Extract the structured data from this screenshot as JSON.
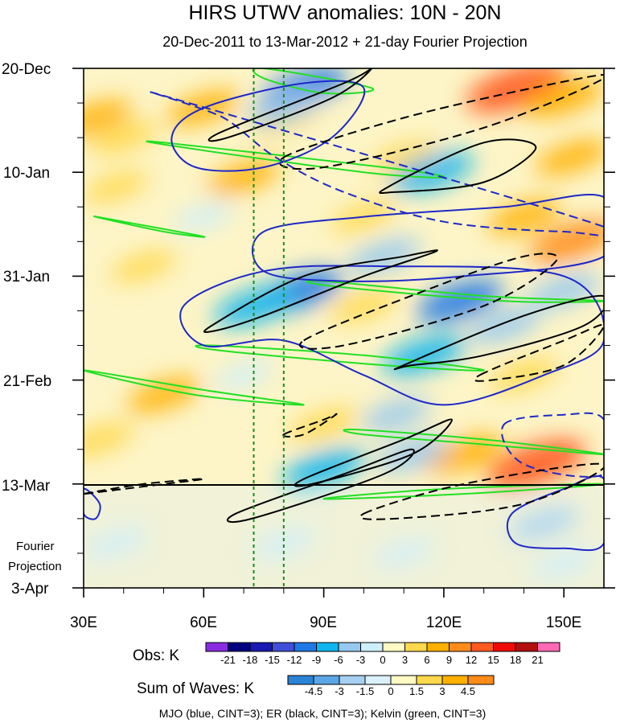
{
  "chart_data": {
    "type": "heatmap",
    "title": "HIRS UTWV anomalies: 10N - 20N",
    "subtitle": "20-Dec-2011 to 13-Mar-2012 + 21-day Fourier Projection",
    "x_axis": {
      "range": [
        30,
        160
      ],
      "units": "degrees east",
      "ticks": [
        30,
        60,
        90,
        120,
        150
      ],
      "tick_labels": [
        "30E",
        "60E",
        "90E",
        "120E",
        "150E"
      ]
    },
    "y_axis": {
      "range_days": [
        0,
        105
      ],
      "direction": "time increases downward",
      "ticks_days": [
        0,
        21,
        42,
        63,
        84,
        105
      ],
      "tick_labels": [
        "20-Dec",
        "10-Jan",
        "31-Jan",
        "21-Feb",
        "13-Mar",
        "3-Apr"
      ],
      "projection_label_lines": [
        "Fourier",
        "Projection"
      ]
    },
    "observation_end_day": 84,
    "reference_longitudes": [
      72.5,
      80
    ],
    "obs_colorbar": {
      "label": "Obs: K",
      "levels": [
        "-21",
        "-18",
        "-15",
        "-12",
        "-9",
        "-6",
        "-3",
        "0",
        "3",
        "6",
        "9",
        "12",
        "15",
        "18",
        "21"
      ],
      "colors": [
        "#8a2be2",
        "#000080",
        "#1919b3",
        "#3f4fd9",
        "#1f78e6",
        "#11b5ee",
        "#96c8f0",
        "#cdeefa",
        "#fff9c4",
        "#ffd84d",
        "#ffb000",
        "#ff8c1a",
        "#ff5a1f",
        "#f00a0a",
        "#b30f0f",
        "#ff69b4"
      ]
    },
    "waves_colorbar": {
      "label": "Sum of Waves: K",
      "levels": [
        "-4.5",
        "-3",
        "-1.5",
        "0",
        "1.5",
        "3",
        "4.5"
      ],
      "colors": [
        "#2b83d6",
        "#5aa6e6",
        "#a6cff2",
        "#daf0fa",
        "#fff9c4",
        "#ffd84d",
        "#ffb000",
        "#ff8c1a"
      ]
    },
    "caption": "MJO (blue, CINT=3); ER (black, CINT=3); Kelvin (green, CINT=3)",
    "anomaly_field": [
      {
        "lon": 33,
        "day": 10,
        "v": 6
      },
      {
        "lon": 40,
        "day": 14,
        "v": 5
      },
      {
        "lon": 60,
        "day": 8,
        "v": 6
      },
      {
        "lon": 80,
        "day": 10,
        "v": 5
      },
      {
        "lon": 70,
        "day": 22,
        "v": 6
      },
      {
        "lon": 38,
        "day": 24,
        "v": 4
      },
      {
        "lon": 110,
        "day": 18,
        "v": 4
      },
      {
        "lon": 138,
        "day": 4,
        "v": 14
      },
      {
        "lon": 150,
        "day": 6,
        "v": 8
      },
      {
        "lon": 152,
        "day": 18,
        "v": 6
      },
      {
        "lon": 152,
        "day": 35,
        "v": 10
      },
      {
        "lon": 140,
        "day": 30,
        "v": 6
      },
      {
        "lon": 100,
        "day": 30,
        "v": 4
      },
      {
        "lon": 100,
        "day": 48,
        "v": 5
      },
      {
        "lon": 45,
        "day": 40,
        "v": 4
      },
      {
        "lon": 50,
        "day": 66,
        "v": 6
      },
      {
        "lon": 34,
        "day": 75,
        "v": 5
      },
      {
        "lon": 90,
        "day": 72,
        "v": 5
      },
      {
        "lon": 140,
        "day": 62,
        "v": 5
      },
      {
        "lon": 143,
        "day": 80,
        "v": 14
      },
      {
        "lon": 125,
        "day": 78,
        "v": 8
      },
      {
        "lon": 85,
        "day": 4,
        "v": -10
      },
      {
        "lon": 80,
        "day": 8,
        "v": -6
      },
      {
        "lon": 117,
        "day": 21,
        "v": -9
      },
      {
        "lon": 105,
        "day": 38,
        "v": -6
      },
      {
        "lon": 84,
        "day": 45,
        "v": -10
      },
      {
        "lon": 73,
        "day": 48,
        "v": -9
      },
      {
        "lon": 124,
        "day": 47,
        "v": -10
      },
      {
        "lon": 135,
        "day": 52,
        "v": -6
      },
      {
        "lon": 115,
        "day": 58,
        "v": -9
      },
      {
        "lon": 150,
        "day": 45,
        "v": -6
      },
      {
        "lon": 108,
        "day": 70,
        "v": -5
      },
      {
        "lon": 90,
        "day": 81,
        "v": -9
      },
      {
        "lon": 112,
        "day": 78,
        "v": -6
      },
      {
        "lon": 38,
        "day": 96,
        "v": -3
      },
      {
        "lon": 80,
        "day": 96,
        "v": -3
      },
      {
        "lon": 110,
        "day": 98,
        "v": -2
      },
      {
        "lon": 145,
        "day": 92,
        "v": -5
      },
      {
        "lon": 150,
        "day": 100,
        "v": -3
      },
      {
        "lon": 60,
        "day": 30,
        "v": -2
      },
      {
        "lon": 70,
        "day": 62,
        "v": -2
      }
    ],
    "mjo_contours": [
      {
        "id": "mjo-1",
        "style": "solid",
        "value": -3,
        "points": [
          [
            60,
            8
          ],
          [
            85,
            3
          ],
          [
            100,
            4
          ],
          [
            92,
            14
          ],
          [
            75,
            20
          ],
          [
            58,
            20
          ],
          [
            52,
            14
          ]
        ]
      },
      {
        "id": "mjo-2",
        "style": "solid",
        "value": -3,
        "points": [
          [
            75,
            33
          ],
          [
            100,
            30
          ],
          [
            135,
            28
          ],
          [
            160,
            26
          ],
          [
            160,
            38
          ],
          [
            125,
            42
          ],
          [
            95,
            43
          ],
          [
            75,
            41
          ]
        ]
      },
      {
        "id": "mjo-3",
        "style": "solid",
        "value": -3,
        "points": [
          [
            55,
            48
          ],
          [
            75,
            41
          ],
          [
            105,
            40
          ],
          [
            150,
            42
          ],
          [
            160,
            55
          ],
          [
            145,
            62
          ],
          [
            120,
            68
          ],
          [
            100,
            62
          ],
          [
            80,
            55
          ],
          [
            60,
            56
          ]
        ]
      },
      {
        "id": "mjo-4",
        "style": "solid",
        "value": -3,
        "points": [
          [
            137,
            90
          ],
          [
            150,
            85
          ],
          [
            160,
            83
          ],
          [
            160,
            96
          ],
          [
            150,
            97
          ],
          [
            138,
            96
          ]
        ]
      },
      {
        "id": "mjo-5",
        "style": "solid",
        "value": -3,
        "points": [
          [
            30,
            85
          ],
          [
            34,
            88
          ],
          [
            33,
            91
          ],
          [
            30,
            90
          ]
        ]
      },
      {
        "id": "mjo-6",
        "style": "dashed",
        "value": 3,
        "points": [
          [
            52,
            6
          ],
          [
            65,
            10
          ],
          [
            78,
            18
          ],
          [
            95,
            25
          ],
          [
            120,
            31
          ],
          [
            150,
            33
          ],
          [
            160,
            32
          ]
        ]
      },
      {
        "id": "mjo-7",
        "style": "dashed",
        "value": 3,
        "points": [
          [
            135,
            72
          ],
          [
            150,
            70
          ],
          [
            160,
            71
          ],
          [
            160,
            82
          ],
          [
            140,
            80
          ]
        ]
      }
    ],
    "er_contours": [
      {
        "id": "er-1",
        "style": "solid",
        "value": -3,
        "points": [
          [
            64,
            13
          ],
          [
            95,
            3
          ],
          [
            102,
            0
          ],
          [
            92,
            6
          ],
          [
            66,
            14
          ]
        ]
      },
      {
        "id": "er-2",
        "style": "solid",
        "value": -3,
        "points": [
          [
            106,
            24
          ],
          [
            130,
            15
          ],
          [
            143,
            16
          ],
          [
            130,
            23
          ],
          [
            108,
            25
          ]
        ]
      },
      {
        "id": "er-3",
        "style": "solid",
        "value": -3,
        "points": [
          [
            62,
            52
          ],
          [
            85,
            42
          ],
          [
            110,
            38
          ],
          [
            118,
            37
          ],
          [
            100,
            42
          ],
          [
            75,
            50
          ],
          [
            63,
            53
          ]
        ]
      },
      {
        "id": "er-4",
        "style": "solid",
        "value": -3,
        "points": [
          [
            110,
            60
          ],
          [
            140,
            50
          ],
          [
            160,
            46
          ],
          [
            155,
            52
          ],
          [
            130,
            58
          ],
          [
            112,
            60
          ]
        ]
      },
      {
        "id": "er-5",
        "style": "solid",
        "value": -3,
        "points": [
          [
            85,
            83
          ],
          [
            110,
            75
          ],
          [
            122,
            71
          ],
          [
            112,
            78
          ],
          [
            87,
            84
          ]
        ]
      },
      {
        "id": "er-6",
        "style": "solid",
        "value": -3,
        "points": [
          [
            68,
            90
          ],
          [
            95,
            82
          ],
          [
            112,
            77
          ],
          [
            105,
            82
          ],
          [
            72,
            91
          ]
        ]
      },
      {
        "id": "er-7",
        "style": "dashed",
        "value": 3,
        "points": [
          [
            80,
            18
          ],
          [
            110,
            10
          ],
          [
            148,
            3
          ],
          [
            160,
            2
          ],
          [
            130,
            12
          ],
          [
            90,
            20
          ]
        ]
      },
      {
        "id": "er-8",
        "style": "dashed",
        "value": 3,
        "points": [
          [
            85,
            55
          ],
          [
            115,
            45
          ],
          [
            140,
            38
          ],
          [
            148,
            39
          ],
          [
            130,
            48
          ],
          [
            95,
            56
          ]
        ]
      },
      {
        "id": "er-9",
        "style": "dashed",
        "value": 3,
        "points": [
          [
            129,
            62
          ],
          [
            150,
            55
          ],
          [
            160,
            52
          ],
          [
            150,
            60
          ],
          [
            132,
            63
          ]
        ]
      },
      {
        "id": "er-10",
        "style": "dashed",
        "value": 3,
        "points": [
          [
            80,
            74
          ],
          [
            90,
            71
          ],
          [
            93,
            70
          ],
          [
            85,
            74
          ]
        ]
      },
      {
        "id": "er-11",
        "style": "dashed",
        "value": 3,
        "points": [
          [
            100,
            90
          ],
          [
            125,
            84
          ],
          [
            160,
            80
          ],
          [
            140,
            88
          ],
          [
            108,
            91
          ]
        ]
      },
      {
        "id": "er-12",
        "style": "dashed",
        "value": 3,
        "points": [
          [
            30,
            86
          ],
          [
            45,
            84
          ],
          [
            60,
            83
          ],
          [
            40,
            85
          ]
        ]
      }
    ],
    "kelvin_contours": [
      {
        "id": "kelvin-1",
        "points": [
          [
            75,
            0
          ],
          [
            102,
            4
          ],
          [
            90,
            5
          ],
          [
            75,
            2
          ]
        ]
      },
      {
        "id": "kelvin-2",
        "points": [
          [
            50,
            15
          ],
          [
            105,
            20
          ],
          [
            120,
            22
          ],
          [
            100,
            21
          ],
          [
            55,
            16
          ]
        ]
      },
      {
        "id": "kelvin-3",
        "points": [
          [
            33,
            30
          ],
          [
            50,
            33
          ],
          [
            60,
            34
          ],
          [
            40,
            31
          ]
        ]
      },
      {
        "id": "kelvin-4",
        "points": [
          [
            90,
            43
          ],
          [
            130,
            46
          ],
          [
            160,
            47
          ],
          [
            135,
            47
          ],
          [
            92,
            44
          ]
        ]
      },
      {
        "id": "kelvin-5",
        "points": [
          [
            62,
            56
          ],
          [
            100,
            58
          ],
          [
            130,
            61
          ],
          [
            105,
            60
          ],
          [
            64,
            57
          ]
        ]
      },
      {
        "id": "kelvin-6",
        "points": [
          [
            30,
            61
          ],
          [
            60,
            65
          ],
          [
            85,
            68
          ],
          [
            58,
            66
          ]
        ]
      },
      {
        "id": "kelvin-7",
        "points": [
          [
            98,
            73
          ],
          [
            130,
            75
          ],
          [
            160,
            78
          ],
          [
            130,
            76
          ],
          [
            100,
            74
          ]
        ]
      },
      {
        "id": "kelvin-8",
        "points": [
          [
            90,
            87
          ],
          [
            120,
            85
          ],
          [
            160,
            84
          ],
          [
            125,
            86
          ]
        ]
      }
    ]
  }
}
